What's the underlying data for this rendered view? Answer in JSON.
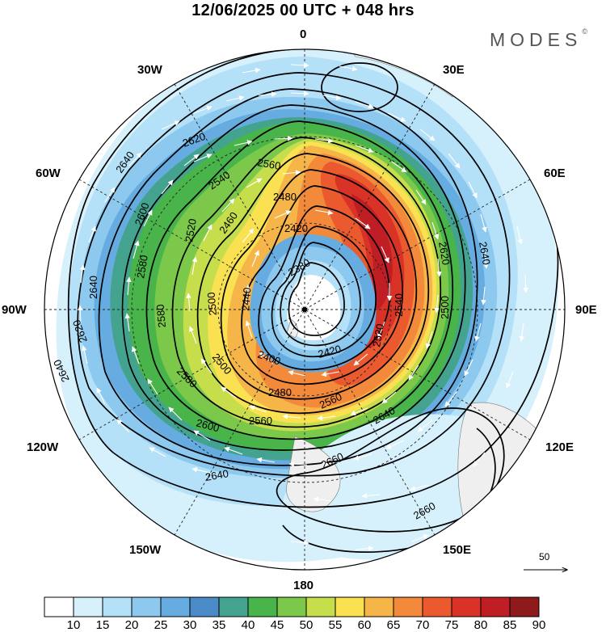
{
  "header": {
    "title": "12/06/2025  00 UTC  + 048 hrs"
  },
  "brand": {
    "text": "MODES",
    "mark": "©"
  },
  "longitude_labels": {
    "n": "0",
    "s": "180",
    "e90": "90E",
    "w90": "90W",
    "e30": "30E",
    "e60": "60E",
    "e120": "120E",
    "e150": "150E",
    "w30": "30W",
    "w60": "60W",
    "w120": "120W",
    "w150": "150W"
  },
  "colorbar": {
    "labels": [
      "10",
      "15",
      "20",
      "25",
      "30",
      "35",
      "40",
      "45",
      "50",
      "55",
      "60",
      "65",
      "70",
      "75",
      "80",
      "85",
      "90"
    ],
    "colors": [
      "#ffffff",
      "#d6f0fc",
      "#b4e0f8",
      "#8dc9ef",
      "#66ace0",
      "#4b8cc8",
      "#43a38f",
      "#48b44a",
      "#7bc84a",
      "#c6dd4c",
      "#f9e152",
      "#f6b548",
      "#f38a3b",
      "#ea5a2e",
      "#d93226",
      "#bf1e25",
      "#8e1a1c"
    ]
  },
  "vector_reference": {
    "label": "50"
  },
  "contours": {
    "labels": [
      {
        "text": "2640"
      },
      {
        "text": "2620"
      },
      {
        "text": "2600"
      },
      {
        "text": "2580"
      },
      {
        "text": "2560"
      },
      {
        "text": "2540"
      },
      {
        "text": "2520"
      },
      {
        "text": "2500"
      },
      {
        "text": "2480"
      },
      {
        "text": "2460"
      },
      {
        "text": "2440"
      },
      {
        "text": "2420"
      },
      {
        "text": "2400"
      },
      {
        "text": "2380"
      },
      {
        "text": "2660"
      }
    ]
  }
}
